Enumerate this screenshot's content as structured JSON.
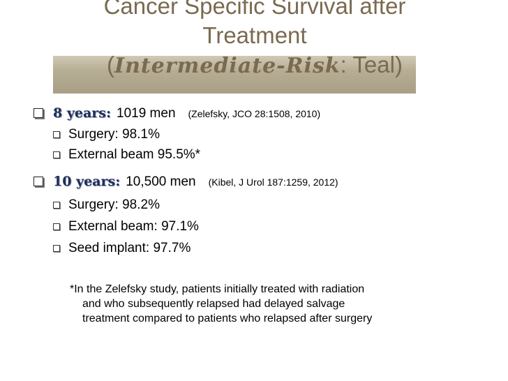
{
  "slide": {
    "title_line1": "Cancer Specific Survival after",
    "title_line2": "Treatment",
    "title_open": "(",
    "title_deco": "Intermediate-Risk",
    "title_close": ": Teal)",
    "bullets": [
      {
        "lead": "8 years:",
        "text": "1019 men",
        "cite": "(Zelefsky, JCO 28:1508, 2010)",
        "subs": [
          "Surgery:  98.1%",
          "External beam 95.5%*"
        ]
      },
      {
        "lead": "10 years:",
        "text": "10,500 men",
        "cite": "(Kibel, J Urol 187:1259, 2012)",
        "subs": [
          "Surgery:  98.2%",
          "External beam: 97.1%",
          "Seed implant: 97.7%"
        ]
      }
    ],
    "footnote": [
      "*In the Zelefsky study, patients initially treated with radiation",
      "and who subsequently relapsed had delayed salvage",
      "treatment compared to patients who relapsed after surgery"
    ]
  },
  "colors": {
    "title": "#7a6a4f",
    "band": "#b6ad94",
    "lead": "#1f2e5a"
  }
}
